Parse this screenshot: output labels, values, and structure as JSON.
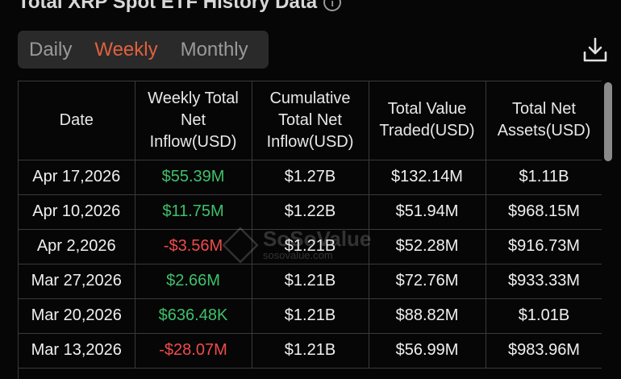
{
  "header": {
    "title": "Total XRP Spot ETF History Data",
    "info_icon": "info-icon"
  },
  "tabs": [
    {
      "label": "Daily",
      "active": false
    },
    {
      "label": "Weekly",
      "active": true
    },
    {
      "label": "Monthly",
      "active": false
    }
  ],
  "colors": {
    "accent": "#e0613f",
    "positive": "#3fc06a",
    "negative": "#f04b4b"
  },
  "table": {
    "columns": [
      "Date",
      "Weekly Total Net Inflow(USD)",
      "Cumulative Total Net Inflow(USD)",
      "Total Value Traded(USD)",
      "Total Net Assets(USD)"
    ],
    "rows": [
      [
        "Apr 17,2026",
        "$55.39M",
        "$1.27B",
        "$132.14M",
        "$1.11B"
      ],
      [
        "Apr 10,2026",
        "$11.75M",
        "$1.22B",
        "$51.94M",
        "$968.15M"
      ],
      [
        "Apr 2,2026",
        "-$3.56M",
        "$1.21B",
        "$52.28M",
        "$916.73M"
      ],
      [
        "Mar 27,2026",
        "$2.66M",
        "$1.21B",
        "$72.76M",
        "$933.33M"
      ],
      [
        "Mar 20,2026",
        "$636.48K",
        "$1.21B",
        "$88.82M",
        "$1.01B"
      ],
      [
        "Mar 13,2026",
        "-$28.07M",
        "$1.21B",
        "$56.99M",
        "$983.96M"
      ]
    ]
  },
  "watermark": {
    "name": "SoSoValue",
    "url": "sosovalue.com"
  }
}
